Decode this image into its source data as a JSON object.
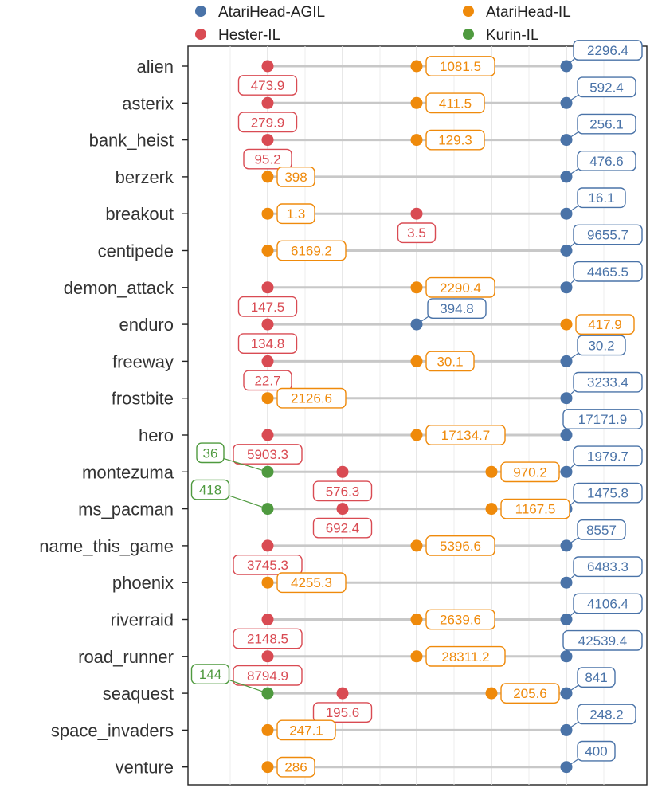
{
  "chart_data": {
    "type": "dot",
    "xscale": "log",
    "grid": true,
    "legend_position": "top",
    "colors": {
      "AtariHead-AGIL": "#4a73a8",
      "AtariHead-IL": "#ef8a0b",
      "Hester-IL": "#d94b53",
      "Kurin-IL": "#4f9a3f"
    },
    "legend": [
      {
        "name": "AtariHead-AGIL"
      },
      {
        "name": "AtariHead-IL"
      },
      {
        "name": "Hester-IL"
      },
      {
        "name": "Kurin-IL"
      }
    ],
    "categories": [
      "alien",
      "asterix",
      "bank_heist",
      "berzerk",
      "breakout",
      "centipede",
      "demon_attack",
      "enduro",
      "freeway",
      "frostbite",
      "hero",
      "montezuma",
      "ms_pacman",
      "name_this_game",
      "phoenix",
      "riverraid",
      "road_runner",
      "seaquest",
      "space_invaders",
      "venture"
    ],
    "series": [
      {
        "name": "AtariHead-AGIL",
        "values": [
          2296.4,
          592.4,
          256.1,
          476.6,
          16.1,
          9655.7,
          4465.5,
          394.8,
          30.2,
          3233.4,
          17171.9,
          1979.7,
          1475.8,
          8557,
          6483.3,
          4106.4,
          42539.4,
          841,
          248.2,
          400
        ]
      },
      {
        "name": "AtariHead-IL",
        "values": [
          1081.5,
          411.5,
          129.3,
          398,
          1.3,
          6169.2,
          2290.4,
          417.9,
          30.1,
          2126.6,
          17134.7,
          970.2,
          1167.5,
          5396.6,
          4255.3,
          2639.6,
          28311.2,
          205.6,
          247.1,
          286
        ]
      },
      {
        "name": "Hester-IL",
        "values": [
          473.9,
          279.9,
          95.2,
          null,
          3.5,
          null,
          147.5,
          134.8,
          22.7,
          null,
          5903.3,
          576.3,
          692.4,
          3745.3,
          null,
          2148.5,
          8794.9,
          195.6,
          null,
          null
        ]
      },
      {
        "name": "Kurin-IL",
        "values": [
          null,
          null,
          null,
          null,
          null,
          null,
          null,
          null,
          null,
          null,
          null,
          36,
          418,
          null,
          null,
          null,
          null,
          144,
          null,
          null
        ]
      }
    ]
  }
}
